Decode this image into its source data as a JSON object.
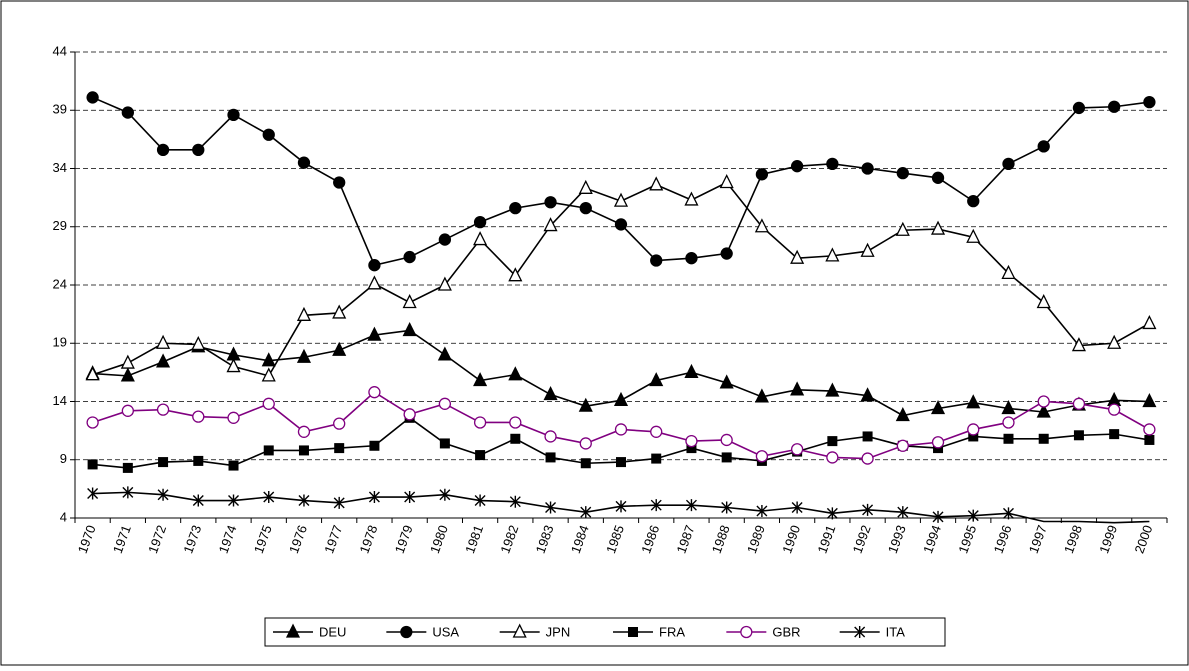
{
  "chart_data": {
    "type": "line",
    "categories": [
      "1970",
      "1971",
      "1972",
      "1973",
      "1974",
      "1975",
      "1976",
      "1977",
      "1978",
      "1979",
      "1980",
      "1981",
      "1982",
      "1983",
      "1984",
      "1985",
      "1986",
      "1987",
      "1988",
      "1989",
      "1990",
      "1991",
      "1992",
      "1993",
      "1994",
      "1995",
      "1996",
      "1997",
      "1998",
      "1999",
      "2000"
    ],
    "series": [
      {
        "name": "DEU",
        "color": "#000000",
        "marker": "triangle-filled",
        "values": [
          16.4,
          16.2,
          17.4,
          18.7,
          18.0,
          17.5,
          17.8,
          18.4,
          19.7,
          20.1,
          18.0,
          15.8,
          16.3,
          14.6,
          13.6,
          14.1,
          15.8,
          16.5,
          15.6,
          14.4,
          15.0,
          14.9,
          14.5,
          12.8,
          13.4,
          13.9,
          13.4,
          13.1,
          13.7,
          14.1,
          14.0
        ]
      },
      {
        "name": "USA",
        "color": "#000000",
        "marker": "circle-filled",
        "values": [
          40.1,
          38.8,
          35.6,
          35.6,
          38.6,
          36.9,
          34.5,
          32.8,
          25.7,
          26.4,
          27.9,
          29.4,
          30.6,
          31.1,
          30.6,
          29.2,
          26.1,
          26.3,
          26.7,
          33.5,
          34.2,
          34.4,
          34.0,
          33.6,
          33.2,
          31.2,
          34.4,
          35.9,
          39.2,
          39.3,
          39.7
        ]
      },
      {
        "name": "JPN",
        "color": "#000000",
        "marker": "triangle-open",
        "values": [
          16.3,
          17.3,
          19.0,
          18.9,
          17.0,
          16.2,
          21.4,
          21.6,
          24.1,
          22.5,
          24.0,
          27.9,
          24.8,
          29.1,
          32.3,
          31.2,
          32.6,
          31.3,
          32.8,
          29.0,
          26.3,
          26.5,
          26.9,
          28.7,
          28.8,
          28.1,
          25.0,
          22.5,
          18.8,
          19.0,
          20.7
        ]
      },
      {
        "name": "FRA",
        "color": "#000000",
        "marker": "square-filled",
        "values": [
          8.6,
          8.3,
          8.8,
          8.9,
          8.5,
          9.8,
          9.8,
          10.0,
          10.2,
          12.6,
          10.4,
          9.4,
          10.8,
          9.2,
          8.7,
          8.8,
          9.1,
          10.0,
          9.2,
          8.9,
          9.7,
          10.6,
          11.0,
          10.2,
          10.0,
          11.0,
          10.8,
          10.8,
          11.1,
          11.2,
          10.7
        ]
      },
      {
        "name": "GBR",
        "color": "#800080",
        "marker": "circle-open",
        "values": [
          12.2,
          13.2,
          13.3,
          12.7,
          12.6,
          13.8,
          11.4,
          12.1,
          14.8,
          12.9,
          13.8,
          12.2,
          12.2,
          11.0,
          10.4,
          11.6,
          11.4,
          10.6,
          10.7,
          9.3,
          9.9,
          9.2,
          9.1,
          10.2,
          10.5,
          11.6,
          12.2,
          14.0,
          13.8,
          13.3,
          11.6
        ]
      },
      {
        "name": "ITA",
        "color": "#000000",
        "marker": "asterisk",
        "values": [
          6.1,
          6.2,
          6.0,
          5.5,
          5.5,
          5.8,
          5.5,
          5.3,
          5.8,
          5.8,
          6.0,
          5.5,
          5.4,
          4.9,
          4.5,
          5.0,
          5.1,
          5.1,
          4.9,
          4.6,
          4.9,
          4.4,
          4.7,
          4.5,
          4.1,
          4.2,
          4.4,
          3.7,
          3.7,
          3.6,
          3.7
        ]
      }
    ],
    "ylim": [
      4,
      44
    ],
    "yticks": [
      4,
      9,
      14,
      19,
      24,
      29,
      34,
      39,
      44
    ],
    "grid": true,
    "legend": "bottom"
  }
}
